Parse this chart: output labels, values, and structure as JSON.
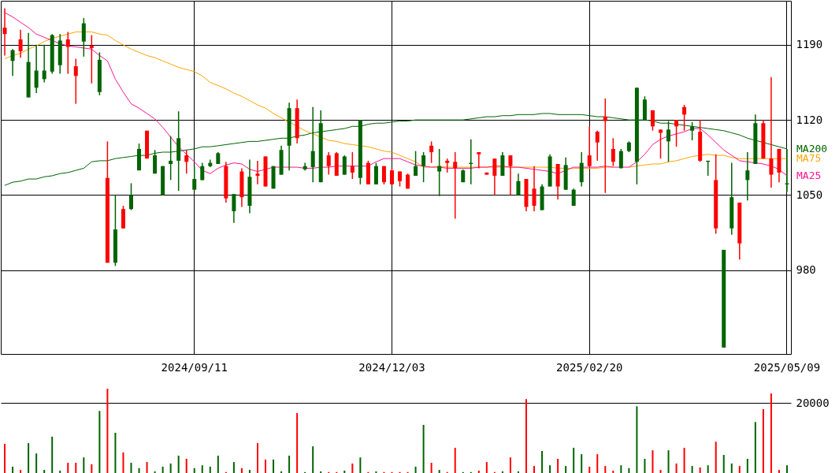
{
  "chart_data": [
    {
      "type": "candlestick",
      "categories": [
        null,
        null,
        null,
        null,
        null,
        null,
        null,
        null,
        null,
        null,
        null,
        null,
        null,
        null,
        null,
        null,
        null,
        null,
        null,
        null,
        null,
        null,
        null,
        null,
        "2024/09/11",
        null,
        null,
        null,
        null,
        null,
        null,
        null,
        null,
        null,
        null,
        null,
        null,
        null,
        null,
        null,
        null,
        null,
        null,
        null,
        null,
        null,
        null,
        null,
        null,
        "2024/12/03",
        null,
        null,
        null,
        null,
        null,
        null,
        null,
        null,
        null,
        null,
        null,
        null,
        null,
        null,
        null,
        null,
        null,
        null,
        null,
        null,
        null,
        null,
        null,
        null,
        "2025/02/20",
        null,
        null,
        null,
        null,
        null,
        null,
        null,
        null,
        null,
        null,
        null,
        null,
        null,
        null,
        null,
        null,
        null,
        null,
        null,
        null,
        null,
        null,
        null,
        null,
        "2025/05/09"
      ],
      "ohlc": [
        [
          1200,
          1224,
          1180,
          1206
        ],
        [
          1185,
          1186,
          1161,
          1175
        ],
        [
          1184,
          1204,
          1178,
          1195
        ],
        [
          1174,
          1201,
          1141,
          1141
        ],
        [
          1166,
          1190,
          1145,
          1150
        ],
        [
          1166,
          1190,
          1155,
          1158
        ],
        [
          1199,
          1200,
          1163,
          1165
        ],
        [
          1194,
          1200,
          1163,
          1171
        ],
        [
          1188,
          1202,
          1163,
          1195
        ],
        [
          1161,
          1177,
          1135,
          1170
        ],
        [
          1210,
          1215,
          1179,
          1193
        ],
        [
          1187,
          1199,
          1154,
          1189
        ],
        [
          1176,
          1183,
          1143,
          1146
        ],
        [
          987,
          1100,
          987,
          1066
        ],
        [
          1018,
          1050,
          984,
          987
        ],
        [
          1019,
          1040,
          1019,
          1037
        ],
        [
          1050,
          1061,
          1036,
          1037
        ],
        [
          1093,
          1098,
          1073,
          1073
        ],
        [
          1084,
          1110,
          1084,
          1110
        ],
        [
          1087,
          1092,
          1070,
          1070
        ],
        [
          1077,
          1077,
          1050,
          1050
        ],
        [
          1082,
          1105,
          1064,
          1079
        ],
        [
          1103,
          1128,
          1054,
          1082
        ],
        [
          1081,
          1092,
          1070,
          1087
        ],
        [
          1065,
          1077,
          1055,
          1055
        ],
        [
          1077,
          1080,
          1064,
          1064
        ],
        [
          1080,
          1083,
          1076,
          1077
        ],
        [
          1089,
          1090,
          1079,
          1079
        ],
        [
          1047,
          1081,
          1043,
          1077
        ],
        [
          1051,
          1051,
          1024,
          1035
        ],
        [
          1048,
          1075,
          1039,
          1072
        ],
        [
          1067,
          1083,
          1033,
          1040
        ],
        [
          1068,
          1082,
          1060,
          1070
        ],
        [
          1058,
          1086,
          1058,
          1086
        ],
        [
          1077,
          1077,
          1056,
          1056
        ],
        [
          1092,
          1096,
          1069,
          1069
        ],
        [
          1131,
          1136,
          1073,
          1096
        ],
        [
          1103,
          1139,
          1098,
          1131
        ],
        [
          1077,
          1080,
          1073,
          1074
        ],
        [
          1091,
          1132,
          1062,
          1076
        ],
        [
          1117,
          1129,
          1062,
          1062
        ],
        [
          1077,
          1090,
          1069,
          1087
        ],
        [
          1068,
          1090,
          1068,
          1089
        ],
        [
          1086,
          1087,
          1069,
          1069
        ],
        [
          1071,
          1090,
          1065,
          1077
        ],
        [
          1120,
          1120,
          1060,
          1066
        ],
        [
          1060,
          1082,
          1060,
          1080
        ],
        [
          1077,
          1080,
          1060,
          1060
        ],
        [
          1062,
          1077,
          1060,
          1077
        ],
        [
          1060,
          1075,
          1060,
          1073
        ],
        [
          1063,
          1072,
          1058,
          1072
        ],
        [
          1056,
          1070,
          1056,
          1069
        ],
        [
          1077,
          1091,
          1068,
          1068
        ],
        [
          1087,
          1090,
          1062,
          1077
        ],
        [
          1090,
          1100,
          1080,
          1096
        ],
        [
          1077,
          1093,
          1049,
          1072
        ],
        [
          1080,
          1084,
          1071,
          1082
        ],
        [
          1075,
          1090,
          1028,
          1081
        ],
        [
          1073,
          1074,
          1062,
          1062
        ],
        [
          1080,
          1102,
          1060,
          1079
        ],
        [
          1088,
          1090,
          1075,
          1090
        ],
        [
          1069,
          1071,
          1069,
          1071
        ],
        [
          1068,
          1084,
          1050,
          1084
        ],
        [
          1087,
          1090,
          1068,
          1068
        ],
        [
          1077,
          1087,
          1050,
          1087
        ],
        [
          1063,
          1070,
          1050,
          1050
        ],
        [
          1039,
          1065,
          1035,
          1065
        ],
        [
          1040,
          1077,
          1035,
          1056
        ],
        [
          1058,
          1060,
          1036,
          1036
        ],
        [
          1086,
          1088,
          1058,
          1058
        ],
        [
          1058,
          1079,
          1046,
          1079
        ],
        [
          1078,
          1085,
          1055,
          1055
        ],
        [
          1055,
          1056,
          1040,
          1040
        ],
        [
          1080,
          1090,
          1058,
          1062
        ],
        [
          1077,
          1114,
          1077,
          1087
        ],
        [
          1099,
          1110,
          1082,
          1109
        ],
        [
          1119,
          1140,
          1052,
          1123
        ],
        [
          1081,
          1103,
          1077,
          1093
        ],
        [
          1091,
          1093,
          1075,
          1075
        ],
        [
          1099,
          1100,
          1090,
          1091
        ],
        [
          1150,
          1150,
          1060,
          1081
        ],
        [
          1139,
          1142,
          1120,
          1120
        ],
        [
          1114,
          1129,
          1110,
          1129
        ],
        [
          1108,
          1111,
          1084,
          1111
        ],
        [
          1111,
          1119,
          1081,
          1100
        ],
        [
          1114,
          1120,
          1095,
          1120
        ],
        [
          1125,
          1134,
          1110,
          1132
        ],
        [
          1114,
          1118,
          1101,
          1110
        ],
        [
          1082,
          1120,
          1081,
          1109
        ],
        [
          1082,
          1082,
          1068,
          1081
        ],
        [
          1019,
          1088,
          1014,
          1064
        ],
        [
          999,
          999,
          908,
          908
        ],
        [
          1048,
          1080,
          1013,
          1019
        ],
        [
          1005,
          1043,
          990,
          1043
        ],
        [
          1073,
          1090,
          1045,
          1064
        ],
        [
          1117,
          1125,
          1079,
          1079
        ],
        [
          1084,
          1120,
          1084,
          1117
        ],
        [
          1069,
          1160,
          1057,
          1084
        ],
        [
          1071,
          1093,
          1062,
          1093
        ],
        [
          1061,
          1093,
          1053,
          1060
        ]
      ],
      "colors": [
        "#ff0000",
        "#006400",
        "#ff0000",
        "#006400",
        "#006400",
        "#006400",
        "#006400",
        "#006400",
        "#ff0000",
        "#ff0000",
        "#006400",
        "#ff0000",
        "#006400",
        "#ff0000",
        "#006400",
        "#ff0000",
        "#006400",
        "#006400",
        "#ff0000",
        "#006400",
        "#006400",
        "#006400",
        "#006400",
        "#ff0000",
        "#006400",
        "#006400",
        "#006400",
        "#006400",
        "#ff0000",
        "#006400",
        "#ff0000",
        "#006400",
        "#ff0000",
        "#ff0000",
        "#006400",
        "#006400",
        "#006400",
        "#ff0000",
        "#006400",
        "#006400",
        "#006400",
        "#ff0000",
        "#ff0000",
        "#006400",
        "#ff0000",
        "#006400",
        "#ff0000",
        "#006400",
        "#ff0000",
        "#ff0000",
        "#ff0000",
        "#ff0000",
        "#006400",
        "#006400",
        "#ff0000",
        "#006400",
        "#ff0000",
        "#ff0000",
        "#006400",
        "#006400",
        "#ff0000",
        "#ff0000",
        "#ff0000",
        "#006400",
        "#ff0000",
        "#006400",
        "#ff0000",
        "#ff0000",
        "#006400",
        "#006400",
        "#ff0000",
        "#006400",
        "#006400",
        "#006400",
        "#ff0000",
        "#ff0000",
        "#ff0000",
        "#ff0000",
        "#006400",
        "#006400",
        "#006400",
        "#006400",
        "#ff0000",
        "#ff0000",
        "#006400",
        "#ff0000",
        "#ff0000",
        "#006400",
        "#ff0000",
        "#006400",
        "#ff0000",
        "#006400",
        "#006400",
        "#ff0000",
        "#006400",
        "#006400",
        "#ff0000",
        "#ff0000",
        "#ff0000",
        "#006400"
      ],
      "series": [
        {
          "name": "MA200",
          "type": "line",
          "color": "#006400",
          "values": [
            1059,
            1062,
            1063,
            1065,
            1065,
            1067,
            1068,
            1070,
            1071,
            1073,
            1075,
            1081,
            1082,
            1082,
            1084,
            1085,
            1086,
            1087,
            1087,
            1089,
            1090,
            1090,
            1091,
            1092,
            1093,
            1095,
            1095,
            1096,
            1097,
            1098,
            1099,
            1100,
            1100,
            1101,
            1102,
            1103,
            1103,
            1105,
            1106,
            1108,
            1109,
            1110,
            1111,
            1112,
            1114,
            1114,
            1116,
            1117,
            1117,
            1118,
            1119,
            1119,
            1120,
            1120,
            1120,
            1120,
            1120,
            1120,
            1120,
            1121,
            1122,
            1123,
            1123,
            1124,
            1124,
            1125,
            1125,
            1125,
            1126,
            1126,
            1125,
            1125,
            1125,
            1125,
            1124,
            1123,
            1123,
            1122,
            1121,
            1120,
            1120,
            1120,
            1119,
            1117,
            1117,
            1116,
            1115,
            1114,
            1113,
            1112,
            1111,
            1110,
            1108,
            1106,
            1103,
            1101,
            1099,
            1097,
            1095,
            1093
          ]
        },
        {
          "name": "MA75",
          "type": "line",
          "color": "#ffa500",
          "values": [
            1177,
            1180,
            1182,
            1186,
            1189,
            1193,
            1196,
            1198,
            1200,
            1202,
            1202,
            1202,
            1200,
            1199,
            1194,
            1190,
            1186,
            1183,
            1180,
            1178,
            1175,
            1172,
            1169,
            1167,
            1165,
            1161,
            1155,
            1152,
            1149,
            1145,
            1142,
            1138,
            1134,
            1131,
            1126,
            1122,
            1118,
            1114,
            1110,
            1107,
            1104,
            1101,
            1100,
            1098,
            1097,
            1096,
            1095,
            1093,
            1091,
            1090,
            1087,
            1084,
            1081,
            1076,
            1076,
            1077,
            1076,
            1076,
            1076,
            1076,
            1076,
            1076,
            1076,
            1076,
            1076,
            1076,
            1076,
            1076,
            1076,
            1076,
            1075,
            1075,
            1075,
            1075,
            1075,
            1075,
            1076,
            1076,
            null,
            1076,
            1077,
            1078,
            1079,
            1079,
            1081,
            1082,
            1084,
            1086,
            1087,
            1088,
            1087,
            1087,
            1085,
            1084,
            1084,
            1084,
            1084,
            1084,
            1084,
            1084
          ]
        },
        {
          "name": "MA25",
          "type": "line",
          "color": "#ff1493",
          "values": [
            1220,
            1216,
            1211,
            1206,
            1200,
            1197,
            1194,
            1191,
            1189,
            1188,
            1187,
            1186,
            1180,
            1175,
            1158,
            1146,
            1135,
            1131,
            1126,
            1121,
            1113,
            1104,
            1095,
            1088,
            1081,
            1073,
            1070,
            1075,
            1078,
            1080,
            1079,
            1074,
            1072,
            1074,
            1076,
            1076,
            1076,
            1076,
            1075,
            1075,
            1076,
            1076,
            1077,
            1077,
            1077,
            1077,
            1077,
            1081,
            1084,
            1084,
            1084,
            1081,
            1078,
            1077,
            1076,
            1076,
            1075,
            1075,
            1075,
            1075,
            1076,
            1076,
            1077,
            1077,
            1076,
            1076,
            1075,
            1074,
            1073,
            1072,
            1070,
            1073,
            1076,
            1076,
            1076,
            1076,
            1077,
            1076,
            1076,
            1076,
            1081,
            1088,
            1097,
            1102,
            1105,
            1107,
            1109,
            1112,
            1112,
            1106,
            1099,
            1092,
            1087,
            1082,
            1081,
            1080,
            1079,
            1077,
            1074,
            1068
          ]
        }
      ],
      "ylim": [
        902,
        1231
      ],
      "yticks": [
        980,
        1050,
        1120,
        1190
      ],
      "grid": true
    },
    {
      "type": "bar",
      "categories": [
        null,
        null,
        null,
        null,
        null,
        null,
        null,
        null,
        null,
        null,
        null,
        null,
        null,
        null,
        null,
        null,
        null,
        null,
        null,
        null,
        null,
        null,
        null,
        null,
        "2024/09/11",
        null,
        null,
        null,
        null,
        null,
        null,
        null,
        null,
        null,
        null,
        null,
        null,
        null,
        null,
        null,
        null,
        null,
        null,
        null,
        null,
        null,
        null,
        null,
        null,
        "2024/12/03",
        null,
        null,
        null,
        null,
        null,
        null,
        null,
        null,
        null,
        null,
        null,
        null,
        null,
        null,
        null,
        null,
        null,
        null,
        null,
        null,
        null,
        null,
        null,
        null,
        "2025/02/20",
        null,
        null,
        null,
        null,
        null,
        null,
        null,
        null,
        null,
        null,
        null,
        null,
        null,
        null,
        null,
        null,
        null,
        null,
        null,
        null,
        null,
        null,
        null,
        null,
        "2025/05/09"
      ],
      "values": [
        8600,
        2200,
        1300,
        8800,
        5900,
        1300,
        10600,
        1100,
        3300,
        3300,
        4800,
        2900,
        17800,
        24000,
        11700,
        6200,
        3300,
        1800,
        3500,
        900,
        2200,
        3100,
        5300,
        4400,
        1800,
        2600,
        2200,
        5300,
        700,
        3500,
        1800,
        1300,
        8800,
        4200,
        4200,
        900,
        5300,
        17200,
        700,
        7900,
        900,
        700,
        700,
        1100,
        3100,
        4800,
        700,
        900,
        700,
        700,
        700,
        700,
        2200,
        13900,
        3300,
        1300,
        700,
        7500,
        700,
        700,
        1100,
        3500,
        700,
        900,
        4800,
        900,
        21100,
        2400,
        6600,
        2600,
        4400,
        2400,
        7500,
        5700,
        2200,
        5700,
        2400,
        1100,
        2600,
        1800,
        19100,
        4400,
        6800,
        1300,
        6800,
        3100,
        7500,
        2400,
        2000,
        2600,
        9200,
        5500,
        3100,
        2400,
        4400,
        14700,
        18300,
        22700,
        1300,
        2600
      ],
      "colors": [
        "#ff0000",
        "#006400",
        "#ff0000",
        "#006400",
        "#006400",
        "#006400",
        "#006400",
        "#006400",
        "#ff0000",
        "#ff0000",
        "#006400",
        "#ff0000",
        "#006400",
        "#ff0000",
        "#006400",
        "#ff0000",
        "#006400",
        "#006400",
        "#ff0000",
        "#006400",
        "#006400",
        "#006400",
        "#006400",
        "#ff0000",
        "#006400",
        "#006400",
        "#006400",
        "#006400",
        "#ff0000",
        "#006400",
        "#ff0000",
        "#006400",
        "#ff0000",
        "#ff0000",
        "#006400",
        "#006400",
        "#006400",
        "#ff0000",
        "#006400",
        "#006400",
        "#006400",
        "#ff0000",
        "#ff0000",
        "#006400",
        "#ff0000",
        "#006400",
        "#ff0000",
        "#006400",
        "#ff0000",
        "#ff0000",
        "#ff0000",
        "#ff0000",
        "#006400",
        "#006400",
        "#ff0000",
        "#006400",
        "#ff0000",
        "#ff0000",
        "#006400",
        "#006400",
        "#ff0000",
        "#ff0000",
        "#ff0000",
        "#006400",
        "#ff0000",
        "#006400",
        "#ff0000",
        "#ff0000",
        "#006400",
        "#006400",
        "#ff0000",
        "#006400",
        "#006400",
        "#006400",
        "#ff0000",
        "#ff0000",
        "#ff0000",
        "#ff0000",
        "#006400",
        "#006400",
        "#006400",
        "#006400",
        "#ff0000",
        "#ff0000",
        "#006400",
        "#ff0000",
        "#ff0000",
        "#006400",
        "#ff0000",
        "#006400",
        "#ff0000",
        "#006400",
        "#006400",
        "#ff0000",
        "#006400",
        "#006400",
        "#ff0000",
        "#ff0000",
        "#ff0000",
        "#006400"
      ],
      "ylim": [
        0,
        25800
      ],
      "yticks": [
        20000
      ],
      "grid": "y",
      "tick_labels": "y"
    }
  ]
}
